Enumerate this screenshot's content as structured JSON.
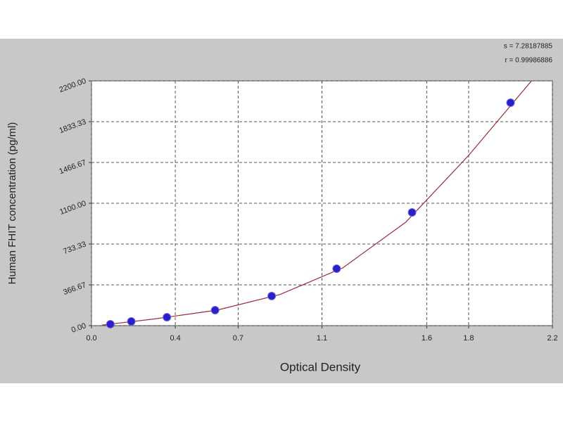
{
  "chart_data": {
    "type": "scatter",
    "x_label": "Optical Density",
    "y_label": "Human FHIT  concentration (pg/ml)",
    "annotations": [
      "s = 7.28187885",
      "r = 0.99986886"
    ],
    "x": [
      0.09,
      0.19,
      0.36,
      0.59,
      0.86,
      1.17,
      1.53,
      2.0
    ],
    "values": [
      13,
      38,
      76,
      139,
      266,
      512,
      1018,
      2004
    ],
    "color": "#2a1fc9",
    "curve": {
      "x": [
        0.05,
        0.3,
        0.6,
        0.9,
        1.2,
        1.5,
        1.8,
        2.1
      ],
      "values": [
        5,
        60,
        140,
        280,
        520,
        930,
        1530,
        2200
      ],
      "color": "#9b2a3a"
    },
    "xlim": [
      0,
      2.2
    ],
    "xticks": [
      {
        "value": 0,
        "label": "0.0"
      },
      0.4,
      0.7,
      1.1,
      1.6,
      1.8,
      2.2
    ],
    "ylim": [
      0,
      2200
    ],
    "yticks": [
      {
        "value": 0,
        "label": "0.00"
      },
      {
        "value": 366.67,
        "label": "366.67"
      },
      {
        "value": 733.33,
        "label": "733.33"
      },
      {
        "value": 1100,
        "label": "1100.00"
      },
      {
        "value": 1466.67,
        "label": "1466.67"
      },
      {
        "value": 1833.33,
        "label": "1833.33"
      },
      {
        "value": 2200,
        "label": "2200.00"
      }
    ],
    "grid": true
  }
}
